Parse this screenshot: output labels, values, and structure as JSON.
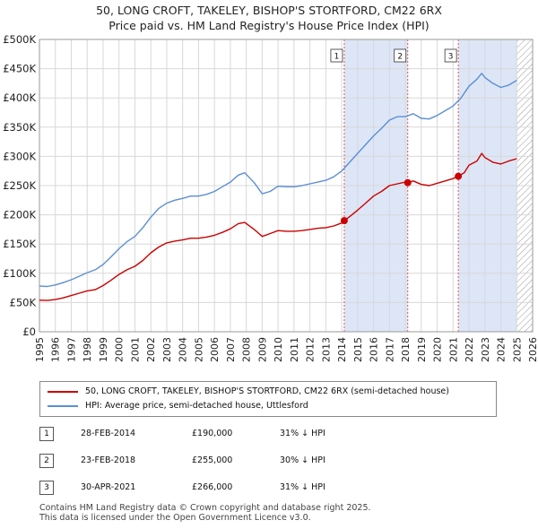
{
  "title_line1": "50, LONG CROFT, TAKELEY, BISHOP'S STORTFORD, CM22 6RX",
  "title_line2": "Price paid vs. HM Land Registry's House Price Index (HPI)",
  "colors": {
    "price": "#cc0000",
    "hpi": "#5b8fd4",
    "shade": "#dde6f6",
    "vline": "#dd5555",
    "grid": "#d8d8d8"
  },
  "chart_data": {
    "type": "line",
    "title": "Price paid vs. HM Land Registry's House Price Index (HPI)",
    "xlim": [
      1995,
      2026
    ],
    "ylim": [
      0,
      500000
    ],
    "y_ticks": [
      0,
      50000,
      100000,
      150000,
      200000,
      250000,
      300000,
      350000,
      400000,
      450000,
      500000
    ],
    "y_tick_labels": [
      "£0",
      "£50K",
      "£100K",
      "£150K",
      "£200K",
      "£250K",
      "£300K",
      "£350K",
      "£400K",
      "£450K",
      "£500K"
    ],
    "x_ticks": [
      1995,
      1996,
      1997,
      1998,
      1999,
      2000,
      2001,
      2002,
      2003,
      2004,
      2005,
      2006,
      2007,
      2008,
      2009,
      2010,
      2011,
      2012,
      2013,
      2014,
      2015,
      2016,
      2017,
      2018,
      2019,
      2020,
      2021,
      2022,
      2023,
      2024,
      2025,
      2026
    ],
    "x_tick_labels": [
      "1995",
      "1996",
      "1997",
      "1998",
      "1999",
      "2000",
      "2001",
      "2002",
      "2003",
      "2004",
      "2005",
      "2006",
      "2007",
      "2008",
      "2009",
      "2010",
      "2011",
      "2012",
      "2013",
      "2014",
      "2015",
      "2016",
      "2017",
      "2018",
      "2019",
      "2020",
      "2021",
      "2022",
      "2023",
      "2024",
      "2025",
      "2026"
    ],
    "shaded_ranges": [
      [
        2014.16,
        2018.15
      ],
      [
        2021.33,
        2025.0
      ]
    ],
    "hatched_from": 2025.0,
    "series": [
      {
        "name": "50, LONG CROFT, TAKELEY, BISHOP'S STORTFORD, CM22 6RX (semi-detached house)",
        "color": "#cc0000",
        "x": [
          1995,
          1995.5,
          1996,
          1996.5,
          1997,
          1997.5,
          1998,
          1998.5,
          1999,
          1999.5,
          2000,
          2000.5,
          2001,
          2001.5,
          2002,
          2002.5,
          2003,
          2003.5,
          2004,
          2004.5,
          2005,
          2005.5,
          2006,
          2006.5,
          2007,
          2007.5,
          2007.9,
          2008.5,
          2009,
          2009.5,
          2010,
          2010.5,
          2011,
          2011.5,
          2012,
          2012.5,
          2013,
          2013.5,
          2014,
          2014.16,
          2014.5,
          2015,
          2015.5,
          2016,
          2016.5,
          2017,
          2017.5,
          2018,
          2018.15,
          2018.5,
          2019,
          2019.5,
          2020,
          2020.5,
          2021,
          2021.33,
          2021.7,
          2022,
          2022.5,
          2022.8,
          2023,
          2023.5,
          2024,
          2024.5,
          2025
        ],
        "y": [
          54000,
          53500,
          55000,
          58000,
          62000,
          66000,
          70000,
          72000,
          79000,
          88000,
          98000,
          106000,
          112000,
          122000,
          135000,
          145000,
          152000,
          155000,
          157000,
          160000,
          160000,
          162000,
          165000,
          170000,
          176000,
          185000,
          187000,
          175000,
          163000,
          168000,
          173000,
          172000,
          172000,
          173000,
          175000,
          177000,
          178000,
          181000,
          186000,
          190000,
          197000,
          208000,
          220000,
          232000,
          240000,
          250000,
          253000,
          256000,
          255000,
          258000,
          252000,
          250000,
          254000,
          258000,
          262000,
          266000,
          272000,
          285000,
          292000,
          305000,
          298000,
          290000,
          287000,
          292000,
          296000
        ]
      },
      {
        "name": "HPI: Average price, semi-detached house, Uttlesford",
        "color": "#5b8fd4",
        "x": [
          1995,
          1995.5,
          1996,
          1996.5,
          1997,
          1997.5,
          1998,
          1998.5,
          1999,
          1999.5,
          2000,
          2000.5,
          2001,
          2001.5,
          2002,
          2002.5,
          2003,
          2003.5,
          2004,
          2004.5,
          2005,
          2005.5,
          2006,
          2006.5,
          2007,
          2007.5,
          2007.9,
          2008.5,
          2009,
          2009.5,
          2010,
          2010.5,
          2011,
          2011.5,
          2012,
          2012.5,
          2013,
          2013.5,
          2014,
          2014.5,
          2015,
          2015.5,
          2016,
          2016.5,
          2017,
          2017.5,
          2018,
          2018.5,
          2019,
          2019.5,
          2020,
          2020.5,
          2021,
          2021.5,
          2022,
          2022.5,
          2022.8,
          2023,
          2023.5,
          2024,
          2024.5,
          2025
        ],
        "y": [
          78000,
          77500,
          80000,
          84000,
          89000,
          95000,
          101000,
          106000,
          115000,
          128000,
          142000,
          154000,
          163000,
          178000,
          196000,
          211000,
          220000,
          225000,
          228000,
          232000,
          232000,
          235000,
          240000,
          248000,
          256000,
          268000,
          272000,
          255000,
          236000,
          240000,
          249000,
          248000,
          248000,
          250000,
          253000,
          256000,
          259000,
          265000,
          275000,
          290000,
          305000,
          320000,
          335000,
          348000,
          362000,
          368000,
          368000,
          373000,
          365000,
          364000,
          370000,
          378000,
          386000,
          400000,
          420000,
          432000,
          442000,
          435000,
          425000,
          418000,
          422000,
          430000
        ]
      }
    ],
    "sale_markers": [
      {
        "id": "1",
        "x": 2014.16,
        "y": 190000
      },
      {
        "id": "2",
        "x": 2018.15,
        "y": 255000
      },
      {
        "id": "3",
        "x": 2021.33,
        "y": 266000
      }
    ]
  },
  "legend": {
    "price_label": "50, LONG CROFT, TAKELEY, BISHOP'S STORTFORD, CM22 6RX (semi-detached house)",
    "hpi_label": "HPI: Average price, semi-detached house, Uttlesford"
  },
  "sales": [
    {
      "num": "1",
      "date": "28-FEB-2014",
      "price": "£190,000",
      "hpi": "31% ↓ HPI"
    },
    {
      "num": "2",
      "date": "23-FEB-2018",
      "price": "£255,000",
      "hpi": "30% ↓ HPI"
    },
    {
      "num": "3",
      "date": "30-APR-2021",
      "price": "£266,000",
      "hpi": "31% ↓ HPI"
    }
  ],
  "footer_line1": "Contains HM Land Registry data © Crown copyright and database right 2025.",
  "footer_line2": "This data is licensed under the Open Government Licence v3.0."
}
